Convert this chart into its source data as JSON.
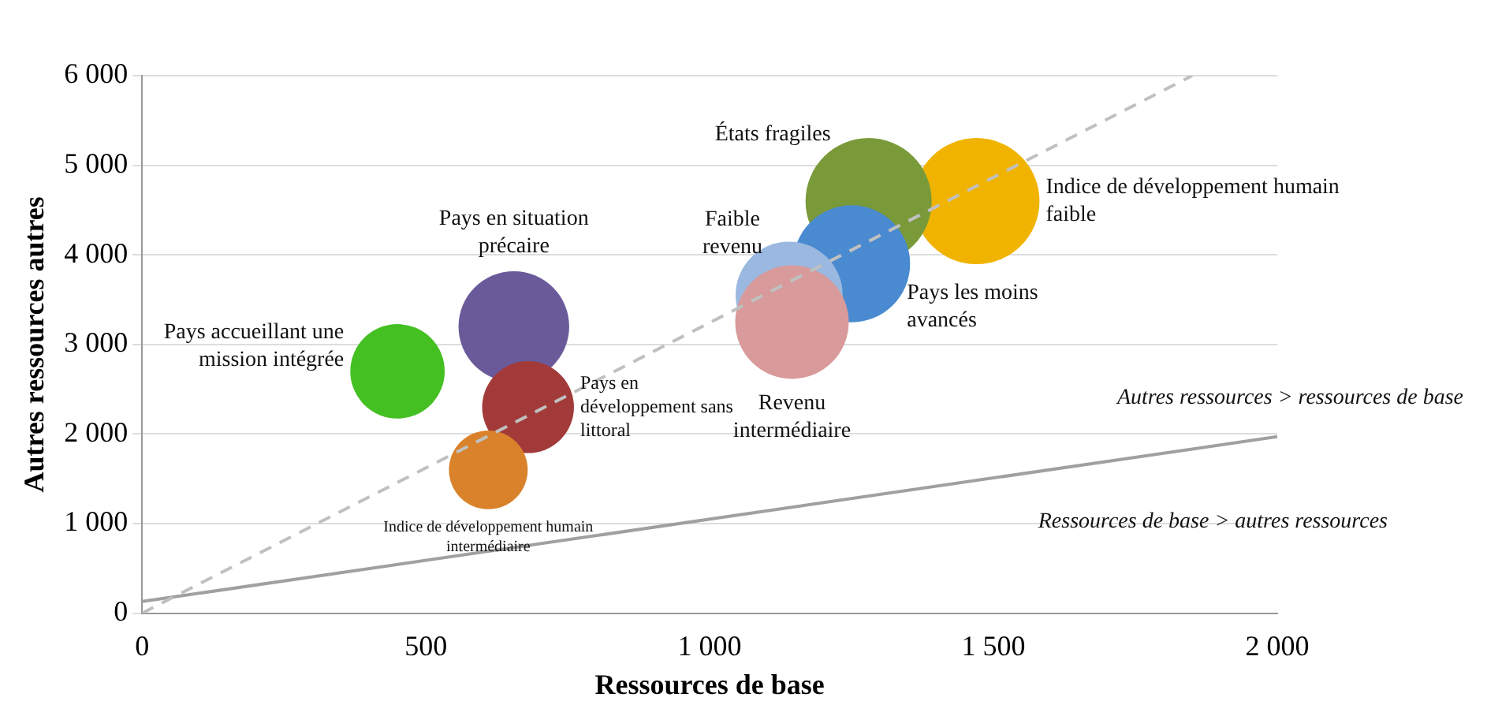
{
  "chart_data": {
    "type": "bubble",
    "xlabel": "Ressources de base",
    "ylabel": "Autres ressources autres",
    "xlim": [
      0,
      2000
    ],
    "ylim": [
      0,
      6000
    ],
    "xticks": [
      {
        "value": 0,
        "label": "0"
      },
      {
        "value": 500,
        "label": "500"
      },
      {
        "value": 1000,
        "label": "1 000"
      },
      {
        "value": 1500,
        "label": "1 500"
      },
      {
        "value": 2000,
        "label": "2 000"
      }
    ],
    "yticks": [
      {
        "value": 0,
        "label": "0"
      },
      {
        "value": 1000,
        "label": "1 000"
      },
      {
        "value": 2000,
        "label": "2 000"
      },
      {
        "value": 3000,
        "label": "3 000"
      },
      {
        "value": 4000,
        "label": "4 000"
      },
      {
        "value": 5000,
        "label": "5 000"
      },
      {
        "value": 6000,
        "label": "6 000"
      }
    ],
    "grid": "y",
    "legend": false,
    "series": [
      {
        "name": "Pays accueillant une mission intégrée",
        "color": "#44c022",
        "x": [
          450
        ],
        "values": [
          2700
        ],
        "sizes": [
          0.56
        ]
      },
      {
        "name": "Pays en situation précaire",
        "color": "#6a5a9a",
        "x": [
          655
        ],
        "values": [
          3200
        ],
        "sizes": [
          0.77
        ]
      },
      {
        "name": "Pays en développement sans littoral",
        "color": "#a33a3a",
        "x": [
          680
        ],
        "values": [
          2300
        ],
        "sizes": [
          0.53
        ]
      },
      {
        "name": "Indice de développement humain intermédiaire",
        "color": "#d9822b",
        "x": [
          610
        ],
        "values": [
          1600
        ],
        "sizes": [
          0.39
        ]
      },
      {
        "name": "Indice de développement humain faible",
        "color": "#f0b400",
        "x": [
          1470
        ],
        "values": [
          4600
        ],
        "sizes": [
          1
        ]
      },
      {
        "name": "États fragiles",
        "color": "#7a9a3a",
        "x": [
          1280
        ],
        "values": [
          4600
        ],
        "sizes": [
          1
        ]
      },
      {
        "name": "Pays les moins avancés",
        "color": "#4a8ad0",
        "x": [
          1250
        ],
        "values": [
          3900
        ],
        "sizes": [
          0.86
        ]
      },
      {
        "name": "Faible revenu",
        "color": "#9ab8e0",
        "x": [
          1140
        ],
        "values": [
          3550
        ],
        "sizes": [
          0.72
        ]
      },
      {
        "name": "Revenu intermédiaire",
        "color": "#d89a9a",
        "x": [
          1145
        ],
        "values": [
          3250
        ],
        "sizes": [
          0.81
        ]
      },
      {
        "type": "line",
        "color": "#c0c0c0",
        "line_style": "dashed",
        "x": [
          0,
          1850
        ],
        "values": [
          0,
          6000
        ]
      },
      {
        "type": "line",
        "color": "#a0a0a0",
        "line_style": "solid",
        "x": [
          0,
          2000
        ],
        "values": [
          130,
          1970
        ]
      }
    ],
    "annotations": [
      "Autres ressources > ressources de base",
      "Ressources de base > autres ressources"
    ]
  }
}
